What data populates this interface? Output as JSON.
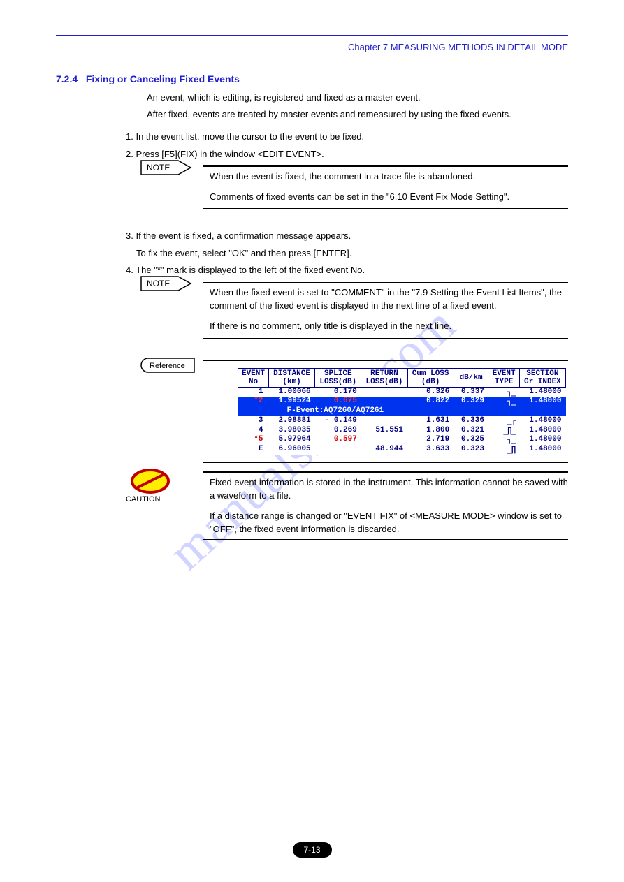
{
  "chapter": "Chapter 7  MEASURING METHODS IN DETAIL MODE",
  "section": {
    "num": "7.2.4",
    "title": "Fixing or Canceling Fixed Events"
  },
  "intro": "An event, which is editing, is registered and fixed as a master event.\nAfter fixed, events are treated by master events and remeasured by using the fixed events.",
  "steps": {
    "s1": "In the event list, move the cursor to the event to be fixed.",
    "s2": "Press [F5](FIX) in the window <EDIT EVENT>.",
    "s3_a": "If the event is fixed, a confirmation message appears.",
    "s3_b": "To fix the event, select \"OK\" and then press [ENTER].",
    "s4": "The \"*\" mark is displayed to the left of the fixed event No."
  },
  "note1": {
    "label": "NOTE",
    "lines": [
      "When the event is fixed, the comment in a trace file is abandoned.",
      "Comments of fixed events can be set in the \"6.10 Event Fix Mode Setting\"."
    ]
  },
  "note2": {
    "label": "NOTE",
    "lines": [
      "When the fixed event is set to \"COMMENT\" in the \"7.9 Setting the Event List Items\", the comment of the fixed event is displayed in the next line of a fixed event.",
      "If there is no comment, only title is displayed in the next line."
    ]
  },
  "ref": {
    "label": "Reference"
  },
  "table": {
    "headers": [
      "EVENT\nNo",
      "DISTANCE\n(km)",
      "SPLICE\nLOSS(dB)",
      "RETURN\nLOSS(dB)",
      "Cum LOSS\n(dB)",
      "dB/km",
      "EVENT\nTYPE",
      "SECTION\nGr INDEX"
    ],
    "rows": [
      {
        "no": "1",
        "dist": "1.00066",
        "splice": "0.170",
        "ret": "",
        "cum": "0.326",
        "dbkm": "0.337",
        "type": "┐_",
        "idx": "1.48000"
      },
      {
        "no": "*2",
        "dist": "1.99524",
        "splice": "0.675",
        "ret": "",
        "cum": "0.822",
        "dbkm": "0.329",
        "type": "┐_",
        "idx": "1.48000",
        "sel": true,
        "splice_red": true,
        "no_red": true
      },
      {
        "fevent": "F-Event:AQ7260/AQ7261",
        "sel": true
      },
      {
        "no": "3",
        "dist": "2.98881",
        "splice": "- 0.149",
        "ret": "",
        "cum": "1.631",
        "dbkm": "0.336",
        "type": "_┌",
        "idx": "1.48000"
      },
      {
        "no": "4",
        "dist": "3.98035",
        "splice": "0.269",
        "ret": "51.551",
        "cum": "1.800",
        "dbkm": "0.321",
        "type": "_∏_",
        "idx": "1.48000"
      },
      {
        "no": "*5",
        "dist": "5.97964",
        "splice": "0.597",
        "ret": "",
        "cum": "2.719",
        "dbkm": "0.325",
        "type": "┐_",
        "idx": "1.48000",
        "no_red": true,
        "splice_red": true
      },
      {
        "no": "E",
        "dist": "6.96005",
        "splice": "",
        "ret": "48.944",
        "cum": "3.633",
        "dbkm": "0.323",
        "type": "_∏",
        "idx": "1.48000"
      }
    ]
  },
  "caution": {
    "label": "CAUTION",
    "lines": [
      "Fixed event information is stored in the instrument. This information cannot be saved with a waveform to a file.",
      "If a distance range is changed or \"EVENT FIX\" of <MEASURE MODE> window is set to \"OFF\", the fixed event information is discarded."
    ]
  },
  "page": "7-13",
  "watermark": "manualshive.com",
  "colors": {
    "blue": "#2020cc",
    "tableText": "#000080",
    "selBg": "#0033ee",
    "red": "#cc0000"
  }
}
